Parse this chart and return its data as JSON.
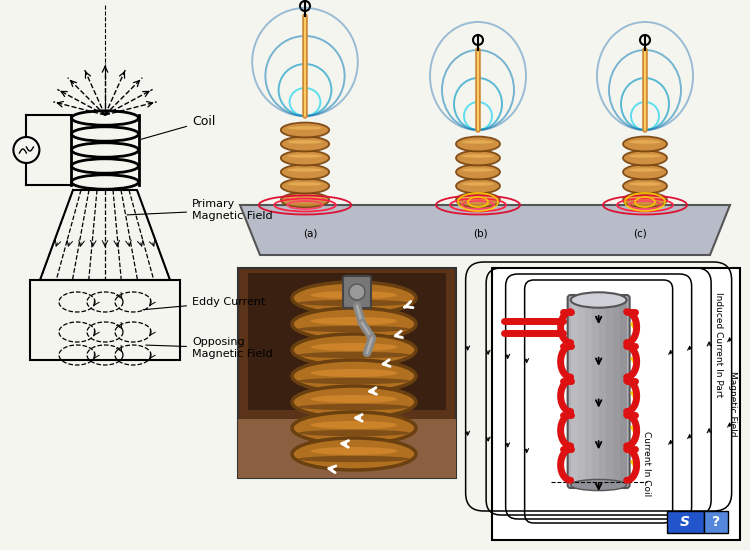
{
  "bg_color": "#f5f5f0",
  "colors": {
    "black": "#000000",
    "red": "#cc1111",
    "blue": "#3377bb",
    "cyan": "#44bbcc",
    "light_cyan": "#88ddee",
    "orange": "#cc7722",
    "coil_brown": "#b8722a",
    "coil_dark": "#7a4510",
    "gray": "#888888",
    "light_gray": "#cccccc",
    "mid_gray": "#aaaaaa",
    "dark_gray": "#555555",
    "yellow": "#ffcc00",
    "white": "#ffffff",
    "plate_color": "#b0b0b0",
    "plate_dark": "#888899",
    "photo_bg": "#6b4020",
    "pink_red": "#ee3355",
    "smartdraw_blue": "#2255bb"
  },
  "labels": {
    "coil": "Coil",
    "primary_field": "Primary\nMagnetic Field",
    "eddy_current": "Eddy Current",
    "opposing_field": "Opposing\nMagnetic Field",
    "induced_current_part": "Induced Current In Part",
    "magnetic_field": "Magnetic Field",
    "current_in_coil": "Current In Coil"
  },
  "layout": {
    "fig_w": 7.5,
    "fig_h": 5.5,
    "dpi": 100
  }
}
